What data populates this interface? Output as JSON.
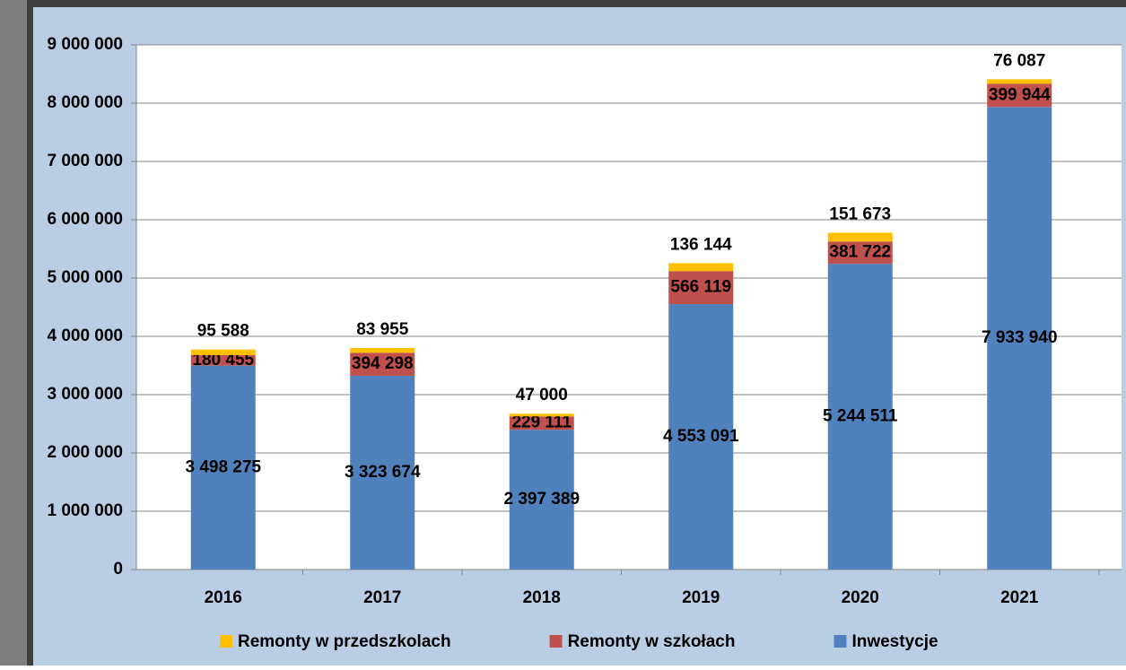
{
  "chart_data": {
    "type": "stacked-bar",
    "categories": [
      "2016",
      "2017",
      "2018",
      "2019",
      "2020",
      "2021"
    ],
    "series": [
      {
        "name": "Inwestycje",
        "color": "#4f81bd",
        "values": [
          3498275,
          3323674,
          2397389,
          4553091,
          5244511,
          7933940
        ],
        "value_labels": [
          "3 498 275",
          "3 323 674",
          "2 397 389",
          "4 553 091",
          "5 244 511",
          "7 933 940"
        ]
      },
      {
        "name": "Remonty w szkołach",
        "color": "#c0504d",
        "values": [
          180455,
          394298,
          229111,
          566119,
          381722,
          399944
        ],
        "value_labels": [
          "180 455",
          "394 298",
          "229 111",
          "566 119",
          "381 722",
          "399 944"
        ]
      },
      {
        "name": "Remonty w przedszkolach",
        "color": "#ffc000",
        "values": [
          95588,
          83955,
          47000,
          136144,
          151673,
          76087
        ],
        "value_labels": [
          "95 588",
          "83 955",
          "47 000",
          "136 144",
          "151 673",
          "76 087"
        ]
      }
    ],
    "ylim": [
      0,
      9000000
    ],
    "yticks": [
      0,
      {
        "value": 1000000,
        "label": "1 000 000"
      },
      {
        "value": 2000000,
        "label": "2 000 000"
      },
      {
        "value": 3000000,
        "label": "3 000 000"
      },
      {
        "value": 4000000,
        "label": "4 000 000"
      },
      {
        "value": 5000000,
        "label": "5 000 000"
      },
      {
        "value": 6000000,
        "label": "6 000 000"
      },
      {
        "value": 7000000,
        "label": "7 000 000"
      },
      {
        "value": 8000000,
        "label": "8 000 000"
      },
      {
        "value": 9000000,
        "label": "9 000 000"
      }
    ],
    "grid": true,
    "legend": "bottom",
    "legend_order": [
      2,
      1,
      0
    ]
  }
}
